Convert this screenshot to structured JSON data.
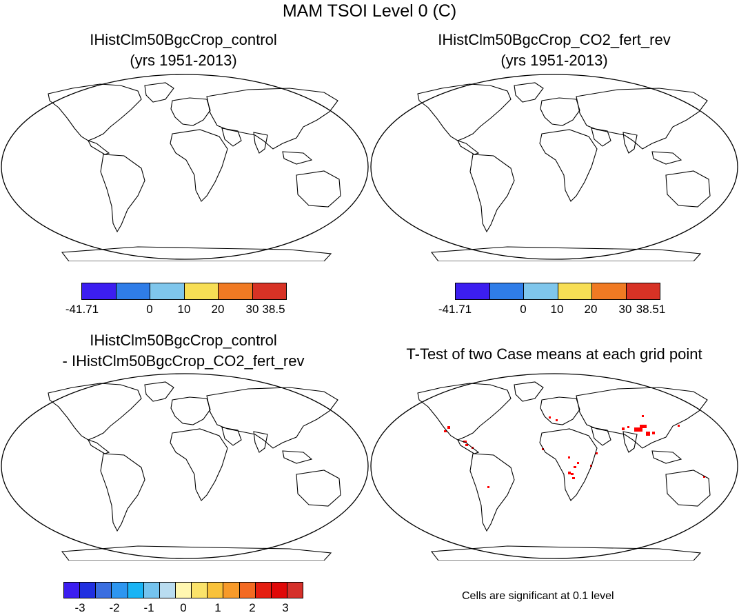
{
  "title": "MAM TSOI Level 0 (C)",
  "panels": {
    "top_left": {
      "title_line1": "IHistClm50BgcCrop_control",
      "title_line2": "(yrs 1951-2013)",
      "colorbar": {
        "colors": [
          "#3c1ef0",
          "#2f7de8",
          "#7fc6ec",
          "#f7de55",
          "#f07a23",
          "#d73225"
        ],
        "labels": [
          "-41.71",
          "0",
          "10",
          "20",
          "30",
          "38.5"
        ]
      }
    },
    "top_right": {
      "title_line1": "IHistClm50BgcCrop_CO2_fert_rev",
      "title_line2": "(yrs 1951-2013)",
      "colorbar": {
        "colors": [
          "#3c1ef0",
          "#2f7de8",
          "#7fc6ec",
          "#f7de55",
          "#f07a23",
          "#d73225"
        ],
        "labels": [
          "-41.71",
          "0",
          "10",
          "20",
          "30",
          "38.51"
        ]
      }
    },
    "bottom_left": {
      "title_line1": "IHistClm50BgcCrop_control",
      "title_line2": "- IHistClm50BgcCrop_CO2_fert_rev",
      "colorbar": {
        "colors": [
          "#3c1ef0",
          "#2030e0",
          "#3a6ee0",
          "#2d96f0",
          "#19b4f5",
          "#74c3ee",
          "#b9dcf0",
          "#fff7b0",
          "#fbe36a",
          "#f9c23a",
          "#f79a2a",
          "#f36a22",
          "#e51e10",
          "#e00808",
          "#d5302a"
        ],
        "labels": [
          "-3",
          "-2",
          "-1",
          "0",
          "1",
          "2",
          "3"
        ]
      }
    },
    "bottom_right": {
      "title": "T-Test of two Case means at each grid point",
      "note": "Cells are significant at 0.1 level"
    }
  },
  "colors": {
    "ocean": "#ffffff",
    "coastline": "#000000",
    "significant": "#ff0000",
    "antarctic_fringe": "#3c1ef0"
  }
}
